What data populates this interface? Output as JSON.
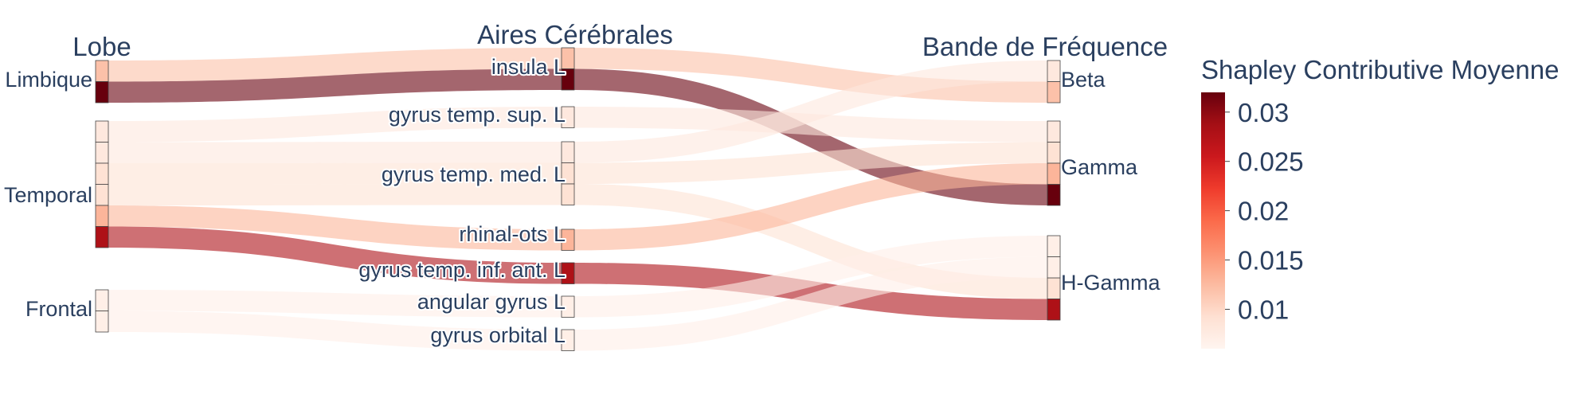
{
  "chart_data": {
    "type": "sankey",
    "column_titles": [
      "Lobe",
      "Aires Cérébrales",
      "Bande de Fréquence"
    ],
    "lobes": [
      "Limbique",
      "Temporal",
      "Frontal"
    ],
    "areas": [
      "insula L",
      "gyrus temp. sup. L",
      "gyrus temp. med. L",
      "rhinal-ots L",
      "gyrus temp. inf. ant. L",
      "angular gyrus L",
      "gyrus orbital L"
    ],
    "bands": [
      "Beta",
      "Gamma",
      "H-Gamma"
    ],
    "links": [
      {
        "lobe": "Limbique",
        "area": "insula L",
        "band": "Beta",
        "value": 0.012
      },
      {
        "lobe": "Limbique",
        "area": "insula L",
        "band": "Gamma",
        "value": 0.032
      },
      {
        "lobe": "Temporal",
        "area": "gyrus temp. sup. L",
        "band": "Gamma",
        "value": 0.008
      },
      {
        "lobe": "Temporal",
        "area": "gyrus temp. med. L",
        "band": "Beta",
        "value": 0.008
      },
      {
        "lobe": "Temporal",
        "area": "gyrus temp. med. L",
        "band": "Gamma",
        "value": 0.009
      },
      {
        "lobe": "Temporal",
        "area": "gyrus temp. med. L",
        "band": "H-Gamma",
        "value": 0.009
      },
      {
        "lobe": "Temporal",
        "area": "rhinal-ots L",
        "band": "Gamma",
        "value": 0.013
      },
      {
        "lobe": "Temporal",
        "area": "gyrus temp. inf. ant. L",
        "band": "H-Gamma",
        "value": 0.028
      },
      {
        "lobe": "Frontal",
        "area": "angular gyrus L",
        "band": "H-Gamma",
        "value": 0.007
      },
      {
        "lobe": "Frontal",
        "area": "gyrus orbital L",
        "band": "H-Gamma",
        "value": 0.007
      }
    ],
    "colorbar": {
      "title": "Shapley Contributive Moyenne",
      "range": [
        0.006,
        0.032
      ],
      "ticks": [
        0.01,
        0.015,
        0.02,
        0.025,
        0.03
      ],
      "tick_labels": [
        "0.01",
        "0.015",
        "0.02",
        "0.025",
        "0.03"
      ],
      "colorscale": "Reds"
    }
  }
}
